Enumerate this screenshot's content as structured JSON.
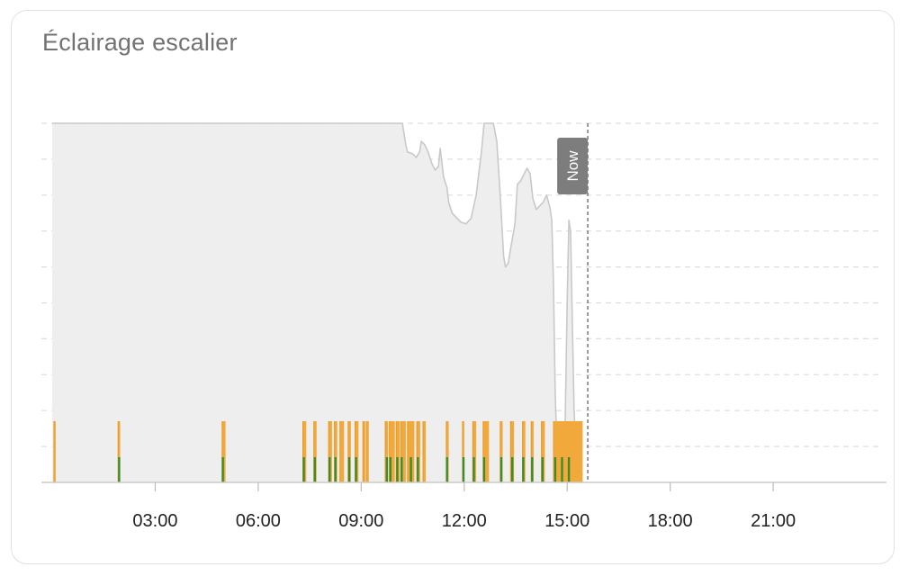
{
  "card": {
    "title": "Éclairage escalier"
  },
  "chart_data": {
    "type": "area",
    "x_unit": "hour of day",
    "xlim": [
      0,
      24.3
    ],
    "ylim": [
      0,
      1
    ],
    "grid": true,
    "x_ticks": [
      {
        "value": 3,
        "label": "03:00"
      },
      {
        "value": 6,
        "label": "06:00"
      },
      {
        "value": 9,
        "label": "09:00"
      },
      {
        "value": 12,
        "label": "12:00"
      },
      {
        "value": 15,
        "label": "15:00"
      },
      {
        "value": 18,
        "label": "18:00"
      },
      {
        "value": 21,
        "label": "21:00"
      }
    ],
    "y_grid_values": [
      0.1,
      0.2,
      0.3,
      0.4,
      0.5,
      0.6,
      0.7,
      0.8,
      0.9,
      1.0
    ],
    "now": {
      "x": 15.6,
      "label": "Now"
    },
    "colors": {
      "area_fill": "#eeeeee",
      "area_line": "#c9c9c9",
      "on_state": "#f2a93b",
      "on_state_edge": "#e59a26",
      "motion": "#3d8b2a",
      "grid": "#dddddd",
      "now_line": "#7a7a7a",
      "now_badge": "#7d7d7d"
    },
    "series": [
      {
        "kind": "illuminance",
        "points": [
          [
            0,
            1.0
          ],
          [
            10.2,
            1.0
          ],
          [
            10.3,
            0.94
          ],
          [
            10.35,
            0.92
          ],
          [
            10.5,
            0.915
          ],
          [
            10.6,
            0.905
          ],
          [
            10.7,
            0.92
          ],
          [
            10.75,
            0.95
          ],
          [
            10.85,
            0.94
          ],
          [
            10.95,
            0.92
          ],
          [
            11.05,
            0.89
          ],
          [
            11.15,
            0.87
          ],
          [
            11.25,
            0.88
          ],
          [
            11.3,
            0.93
          ],
          [
            11.4,
            0.85
          ],
          [
            11.5,
            0.82
          ],
          [
            11.55,
            0.78
          ],
          [
            11.65,
            0.75
          ],
          [
            11.8,
            0.735
          ],
          [
            11.9,
            0.725
          ],
          [
            12.05,
            0.72
          ],
          [
            12.2,
            0.735
          ],
          [
            12.35,
            0.8
          ],
          [
            12.5,
            0.92
          ],
          [
            12.58,
            1.0
          ],
          [
            12.85,
            1.0
          ],
          [
            12.95,
            0.95
          ],
          [
            13.05,
            0.8
          ],
          [
            13.15,
            0.63
          ],
          [
            13.2,
            0.6
          ],
          [
            13.28,
            0.61
          ],
          [
            13.35,
            0.65
          ],
          [
            13.48,
            0.72
          ],
          [
            13.55,
            0.83
          ],
          [
            13.65,
            0.84
          ],
          [
            13.75,
            0.86
          ],
          [
            13.83,
            0.875
          ],
          [
            13.92,
            0.86
          ],
          [
            14.0,
            0.79
          ],
          [
            14.1,
            0.76
          ],
          [
            14.2,
            0.77
          ],
          [
            14.3,
            0.78
          ],
          [
            14.4,
            0.8
          ],
          [
            14.5,
            0.765
          ],
          [
            14.55,
            0.73
          ],
          [
            14.6,
            0.55
          ],
          [
            14.65,
            0.25
          ],
          [
            14.7,
            0.09
          ],
          [
            14.78,
            0.03
          ],
          [
            14.85,
            0.02
          ],
          [
            14.92,
            0.05
          ],
          [
            15.0,
            0.5
          ],
          [
            15.05,
            0.73
          ],
          [
            15.1,
            0.7
          ],
          [
            15.15,
            0.45
          ],
          [
            15.2,
            0.2
          ],
          [
            15.26,
            0.08
          ],
          [
            15.35,
            0.03
          ],
          [
            15.45,
            0.02
          ]
        ]
      },
      {
        "kind": "light-on",
        "intervals": [
          [
            0.05,
            0.1
          ],
          [
            1.92,
            1.98
          ],
          [
            4.95,
            5.05
          ],
          [
            7.3,
            7.4
          ],
          [
            7.62,
            7.7
          ],
          [
            8.05,
            8.15
          ],
          [
            8.22,
            8.3
          ],
          [
            8.38,
            8.5
          ],
          [
            8.62,
            8.7
          ],
          [
            8.82,
            8.92
          ],
          [
            9.05,
            9.12
          ],
          [
            9.15,
            9.22
          ],
          [
            9.7,
            9.78
          ],
          [
            9.82,
            9.98
          ],
          [
            10.02,
            10.12
          ],
          [
            10.15,
            10.3
          ],
          [
            10.35,
            10.55
          ],
          [
            10.62,
            10.72
          ],
          [
            10.8,
            10.88
          ],
          [
            11.48,
            11.55
          ],
          [
            11.95,
            12.0
          ],
          [
            12.25,
            12.35
          ],
          [
            12.55,
            12.72
          ],
          [
            13.05,
            13.12
          ],
          [
            13.35,
            13.45
          ],
          [
            13.7,
            13.78
          ],
          [
            13.95,
            14.02
          ],
          [
            14.25,
            14.35
          ],
          [
            14.6,
            15.45
          ]
        ]
      },
      {
        "kind": "motion",
        "events": [
          1.95,
          4.97,
          7.33,
          7.65,
          8.08,
          8.25,
          8.65,
          8.85,
          9.75,
          9.85,
          10.05,
          10.18,
          10.45,
          10.65,
          11.5,
          11.98,
          12.28,
          12.58,
          13.08,
          13.4,
          13.72,
          13.98,
          14.28,
          14.65,
          14.85,
          15.05
        ]
      }
    ]
  }
}
